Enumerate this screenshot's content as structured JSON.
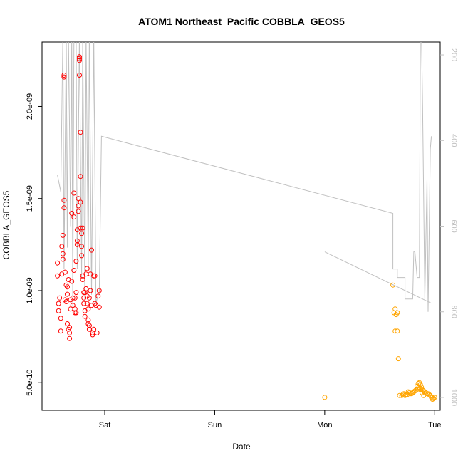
{
  "chart_data": {
    "type": "scatter",
    "title": "ATOM1 Northeast_Pacific COBBLA_GEOS5",
    "xlabel": "Date",
    "ylabel": "COBBLA_GEOS5",
    "x_tick_labels": [
      "Sat",
      "Sun",
      "Mon",
      "Tue"
    ],
    "x_ticks_days": [
      1,
      2,
      3,
      4
    ],
    "xlim_days": [
      0.43,
      4.05
    ],
    "ylim": [
      3.5e-10,
      2.35e-09
    ],
    "y_ticks": [
      5e-10,
      1e-09,
      1.5e-09,
      2e-09
    ],
    "y_tick_labels": [
      "5.0e-10",
      "1.0e-09",
      "1.5e-09",
      "2.0e-09"
    ],
    "y2_label": "",
    "y2_ticks": [
      200,
      400,
      600,
      800,
      1000
    ],
    "y2_tick_labels": [
      "200",
      "400",
      "600",
      "800",
      "1000"
    ],
    "y2_reversed": true,
    "y2_lim": [
      1030,
      170
    ],
    "grid": false,
    "colors": {
      "series1": "#ff0000",
      "series2": "#ffa500",
      "pressure": "#c0c0c0"
    },
    "series": [
      {
        "marker": "open-circle",
        "color": "#ff0000",
        "points": [
          [
            0.57,
            1.15e-09
          ],
          [
            0.57,
            1.08e-09
          ],
          [
            0.58,
            9.3e-10
          ],
          [
            0.58,
            8.9e-10
          ],
          [
            0.59,
            9.6e-10
          ],
          [
            0.6,
            8.5e-10
          ],
          [
            0.6,
            7.8e-10
          ],
          [
            0.61,
            1.09e-09
          ],
          [
            0.61,
            1.24e-09
          ],
          [
            0.62,
            1.3e-09
          ],
          [
            0.62,
            1.17e-09
          ],
          [
            0.62,
            1.2e-09
          ],
          [
            0.63,
            1.49e-09
          ],
          [
            0.63,
            1.45e-09
          ],
          [
            0.63,
            2.16e-09
          ],
          [
            0.63,
            2.17e-09
          ],
          [
            0.64,
            1.1e-09
          ],
          [
            0.64,
            9.5e-10
          ],
          [
            0.65,
            1.03e-09
          ],
          [
            0.65,
            9.4e-10
          ],
          [
            0.66,
            1.02e-09
          ],
          [
            0.66,
            9.8e-10
          ],
          [
            0.66,
            8.2e-10
          ],
          [
            0.67,
            1.06e-09
          ],
          [
            0.67,
            7.9e-10
          ],
          [
            0.68,
            8e-10
          ],
          [
            0.68,
            7.7e-10
          ],
          [
            0.68,
            7.4e-10
          ],
          [
            0.69,
            9e-10
          ],
          [
            0.69,
            9.5e-10
          ],
          [
            0.7,
            1.42e-09
          ],
          [
            0.7,
            1.05e-09
          ],
          [
            0.71,
            9.2e-10
          ],
          [
            0.71,
            9.6e-10
          ],
          [
            0.72,
            1.53e-09
          ],
          [
            0.72,
            1.4e-09
          ],
          [
            0.72,
            1.11e-09
          ],
          [
            0.73,
            9e-10
          ],
          [
            0.73,
            8.8e-10
          ],
          [
            0.73,
            9.6e-10
          ],
          [
            0.74,
            1.16e-09
          ],
          [
            0.74,
            9.9e-10
          ],
          [
            0.74,
            8.8e-10
          ],
          [
            0.75,
            1.27e-09
          ],
          [
            0.75,
            1.25e-09
          ],
          [
            0.75,
            1.33e-09
          ],
          [
            0.76,
            1.5e-09
          ],
          [
            0.76,
            1.46e-09
          ],
          [
            0.76,
            1.43e-09
          ],
          [
            0.77,
            2.26e-09
          ],
          [
            0.77,
            2.27e-09
          ],
          [
            0.77,
            2.25e-09
          ],
          [
            0.77,
            2.17e-09
          ],
          [
            0.78,
            1.86e-09
          ],
          [
            0.78,
            1.62e-09
          ],
          [
            0.78,
            1.48e-09
          ],
          [
            0.78,
            1.34e-09
          ],
          [
            0.79,
            1.31e-09
          ],
          [
            0.79,
            1.24e-09
          ],
          [
            0.79,
            1.19e-09
          ],
          [
            0.8,
            1.34e-09
          ],
          [
            0.8,
            1.08e-09
          ],
          [
            0.8,
            1.06e-09
          ],
          [
            0.81,
            9.9e-10
          ],
          [
            0.81,
            9.6e-10
          ],
          [
            0.81,
            9.3e-10
          ],
          [
            0.82,
            8.9e-10
          ],
          [
            0.82,
            8.6e-10
          ],
          [
            0.82,
            9.9e-10
          ],
          [
            0.83,
            1.01e-09
          ],
          [
            0.83,
            1.09e-09
          ],
          [
            0.84,
            1.12e-09
          ],
          [
            0.84,
            9.7e-10
          ],
          [
            0.84,
            9.3e-10
          ],
          [
            0.85,
            9e-10
          ],
          [
            0.85,
            8.4e-10
          ],
          [
            0.85,
            8.2e-10
          ],
          [
            0.86,
            8.1e-10
          ],
          [
            0.86,
            7.9e-10
          ],
          [
            0.86,
            9.6e-10
          ],
          [
            0.87,
            1.09e-09
          ],
          [
            0.87,
            1e-09
          ],
          [
            0.88,
            1.22e-09
          ],
          [
            0.88,
            9.2e-10
          ],
          [
            0.89,
            7.7e-10
          ],
          [
            0.89,
            7.6e-10
          ],
          [
            0.9,
            1.08e-09
          ],
          [
            0.9,
            7.9e-10
          ],
          [
            0.91,
            1.08e-09
          ],
          [
            0.91,
            9.3e-10
          ],
          [
            0.92,
            9.2e-10
          ],
          [
            0.93,
            7.7e-10
          ],
          [
            0.94,
            9.7e-10
          ],
          [
            0.95,
            9.1e-10
          ],
          [
            0.95,
            1e-09
          ]
        ]
      },
      {
        "marker": "open-circle",
        "color": "#ffa500",
        "points": [
          [
            3.0,
            4.2e-10
          ],
          [
            3.62,
            1.03e-09
          ],
          [
            3.63,
            8.8e-10
          ],
          [
            3.64,
            9e-10
          ],
          [
            3.65,
            8.7e-10
          ],
          [
            3.64,
            7.8e-10
          ],
          [
            3.66,
            8.8e-10
          ],
          [
            3.66,
            7.8e-10
          ],
          [
            3.67,
            6.3e-10
          ],
          [
            3.68,
            4.3e-10
          ],
          [
            3.7,
            4.3e-10
          ],
          [
            3.71,
            4.35e-10
          ],
          [
            3.72,
            4.4e-10
          ],
          [
            3.73,
            4.3e-10
          ],
          [
            3.74,
            4.35e-10
          ],
          [
            3.75,
            4.35e-10
          ],
          [
            3.76,
            4.5e-10
          ],
          [
            3.77,
            4.45e-10
          ],
          [
            3.78,
            4.4e-10
          ],
          [
            3.79,
            4.4e-10
          ],
          [
            3.8,
            4.45e-10
          ],
          [
            3.81,
            4.5e-10
          ],
          [
            3.82,
            4.55e-10
          ],
          [
            3.83,
            4.6e-10
          ],
          [
            3.84,
            4.8e-10
          ],
          [
            3.85,
            4.95e-10
          ],
          [
            3.86,
            5e-10
          ],
          [
            3.87,
            4.9e-10
          ],
          [
            3.88,
            4.75e-10
          ],
          [
            3.89,
            4.6e-10
          ],
          [
            3.9,
            4.55e-10
          ],
          [
            3.91,
            4.5e-10
          ],
          [
            3.92,
            4.45e-10
          ],
          [
            3.93,
            4.4e-10
          ],
          [
            3.94,
            4.4e-10
          ],
          [
            3.95,
            4.35e-10
          ],
          [
            3.96,
            4.3e-10
          ],
          [
            3.97,
            4.2e-10
          ],
          [
            3.98,
            4.1e-10
          ],
          [
            3.99,
            4.15e-10
          ],
          [
            4.0,
            4.2e-10
          ],
          [
            3.845,
            4.65e-10
          ],
          [
            3.855,
            4.75e-10
          ],
          [
            3.865,
            4.7e-10
          ],
          [
            3.875,
            4.6e-10
          ],
          [
            3.885,
            4.45e-10
          ],
          [
            3.9,
            4.3e-10
          ]
        ]
      }
    ],
    "pressure_line": {
      "color": "#c0c0c0",
      "y_axis": "right",
      "segments": [
        [
          [
            0.57,
            480
          ],
          [
            0.6,
            520
          ],
          [
            0.62,
            150
          ],
          [
            0.63,
            700
          ],
          [
            0.65,
            150
          ],
          [
            0.66,
            650
          ],
          [
            0.67,
            150
          ],
          [
            0.69,
            600
          ],
          [
            0.7,
            150
          ],
          [
            0.71,
            800
          ],
          [
            0.72,
            150
          ],
          [
            0.74,
            150
          ],
          [
            0.75,
            700
          ],
          [
            0.77,
            150
          ],
          [
            0.79,
            720
          ],
          [
            0.8,
            150
          ],
          [
            0.82,
            780
          ],
          [
            0.83,
            150
          ],
          [
            0.85,
            700
          ],
          [
            0.86,
            150
          ],
          [
            0.88,
            760
          ],
          [
            0.9,
            150
          ],
          [
            0.92,
            780
          ],
          [
            0.94,
            760
          ],
          [
            0.95,
            760
          ],
          [
            0.97,
            390
          ],
          [
            3.62,
            570
          ],
          [
            3.62,
            700
          ],
          [
            3.66,
            700
          ],
          [
            3.66,
            720
          ],
          [
            3.73,
            720
          ],
          [
            3.73,
            770
          ],
          [
            3.8,
            770
          ],
          [
            3.81,
            660
          ],
          [
            3.82,
            660
          ],
          [
            3.84,
            720
          ],
          [
            3.86,
            720
          ],
          [
            3.87,
            150
          ],
          [
            3.88,
            150
          ],
          [
            3.89,
            320
          ],
          [
            3.91,
            770
          ],
          [
            3.93,
            490
          ],
          [
            3.94,
            800
          ],
          [
            3.96,
            420
          ],
          [
            3.97,
            390
          ]
        ],
        [
          [
            3.0,
            660
          ],
          [
            3.97,
            780
          ]
        ]
      ]
    }
  }
}
